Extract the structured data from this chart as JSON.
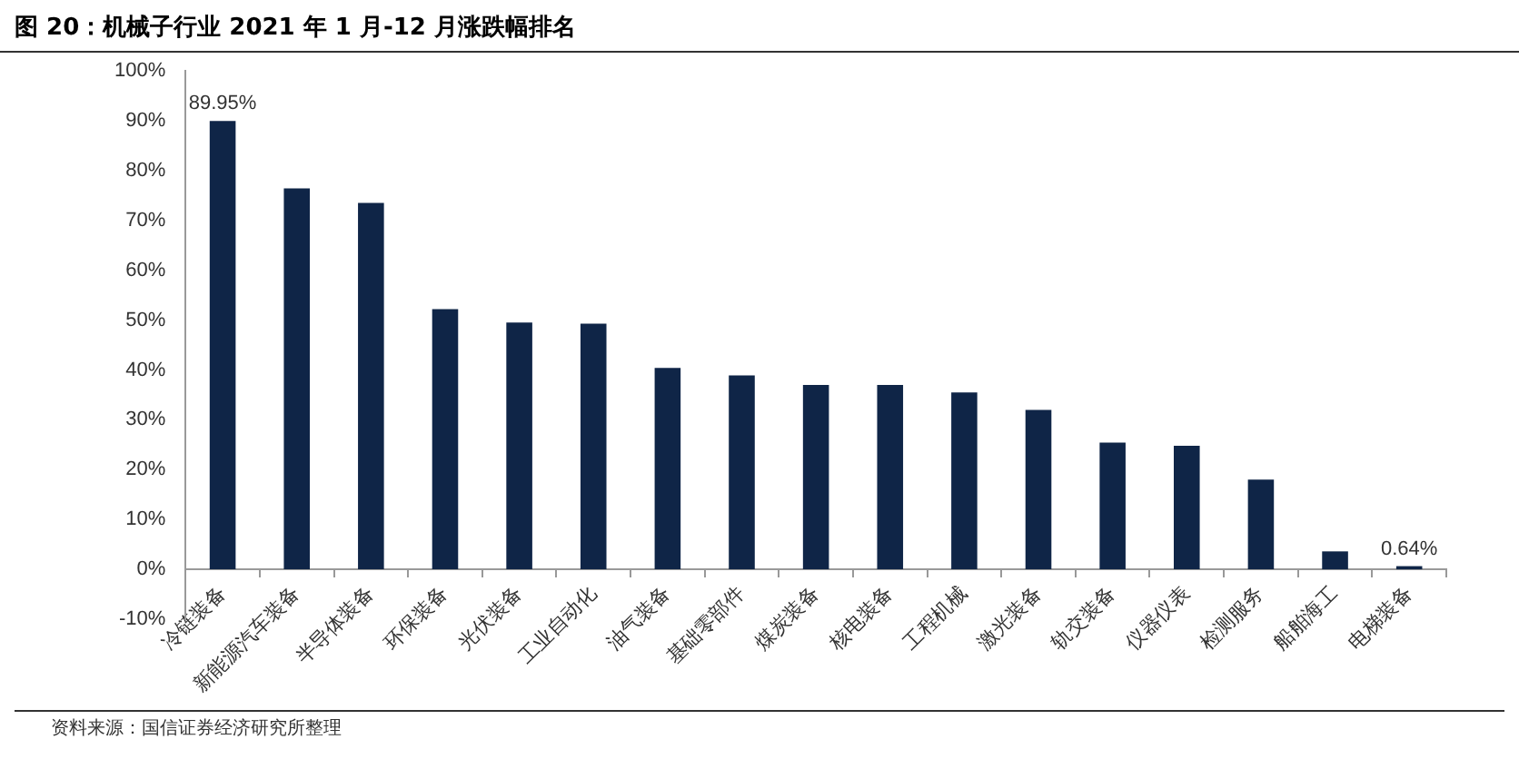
{
  "chart_data": {
    "type": "bar",
    "title": "图 20：机械子行业 2021 年 1 月-12 月涨跌幅排名",
    "categories": [
      "冷链装备",
      "新能源汽车装备",
      "半导体装备",
      "环保装备",
      "光伏装备",
      "工业自动化",
      "油气装备",
      "基础零部件",
      "煤炭装备",
      "核电装备",
      "工程机械",
      "激光装备",
      "轨交装备",
      "仪器仪表",
      "检测服务",
      "船舶海工",
      "电梯装备"
    ],
    "values": [
      89.95,
      76.4,
      73.5,
      52.2,
      49.5,
      49.3,
      40.4,
      38.9,
      37.0,
      37.0,
      35.5,
      32.0,
      25.4,
      24.8,
      18.0,
      3.6,
      0.64
    ],
    "value_labels": [
      "89.95%",
      null,
      null,
      null,
      null,
      null,
      null,
      null,
      null,
      null,
      null,
      null,
      null,
      null,
      null,
      null,
      "0.64%"
    ],
    "color": "#0f2547",
    "ylim": [
      -10,
      100
    ],
    "yticks": [
      {
        "value": -10,
        "label": "-10%"
      },
      {
        "value": 0,
        "label": "0%"
      },
      {
        "value": 10,
        "label": "10%"
      },
      {
        "value": 20,
        "label": "20%"
      },
      {
        "value": 30,
        "label": "30%"
      },
      {
        "value": 40,
        "label": "40%"
      },
      {
        "value": 50,
        "label": "50%"
      },
      {
        "value": 60,
        "label": "60%"
      },
      {
        "value": 70,
        "label": "70%"
      },
      {
        "value": 80,
        "label": "80%"
      },
      {
        "value": 90,
        "label": "90%"
      },
      {
        "value": 100,
        "label": "100%"
      }
    ],
    "grid": false,
    "legend": false,
    "annotations": [
      "资料来源：国信证券经济研究所整理"
    ]
  }
}
